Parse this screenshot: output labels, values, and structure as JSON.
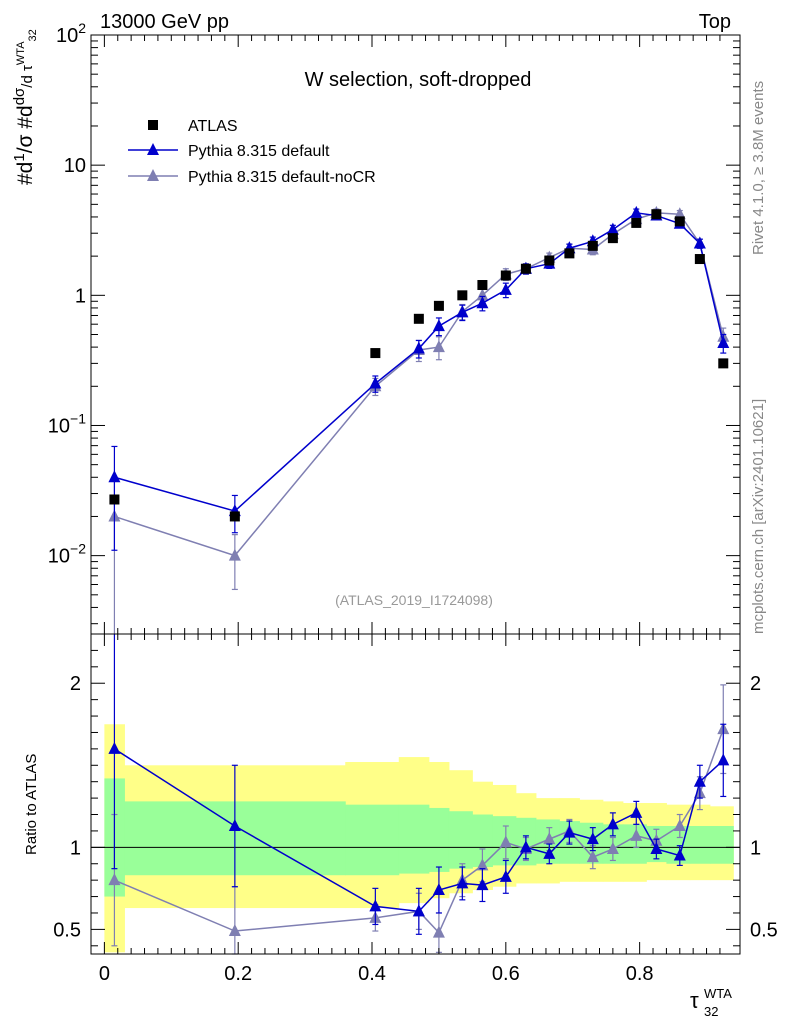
{
  "header": {
    "left": "13000 GeV pp",
    "right": "Top"
  },
  "side": {
    "rivet": "Rivet 4.1.0, ≥ 3.8M events",
    "mcplots": "mcplots.cern.ch [arXiv:2401.10621]"
  },
  "analysis_tag": "(ATLAS_2019_I1724098)",
  "colors": {
    "data": "#000000",
    "default": "#0000cc",
    "nocr": "#7f7fb2",
    "band_outer": "#ffff88",
    "band_inner": "#99ff99"
  },
  "chart_data": [
    {
      "type": "scatter",
      "title": "W selection, soft-dropped",
      "ylabel": "#d1/σ #dd σ/d τ32WTA",
      "yscale": "log",
      "ylim": [
        0.0025,
        100
      ],
      "xlim": [
        -0.02,
        0.95
      ],
      "yticks": [
        {
          "value": 0.01,
          "base": "10",
          "exp": "−2"
        },
        {
          "value": 0.1,
          "base": "10",
          "exp": "−1"
        },
        {
          "value": 1,
          "base": "1",
          "exp": ""
        },
        {
          "value": 10,
          "base": "10",
          "exp": ""
        },
        {
          "value": 100,
          "base": "10",
          "exp": "2"
        }
      ],
      "legend": {
        "position": "top-left",
        "entries": [
          "ATLAS",
          "Pythia 8.315 default",
          "Pythia 8.315 default-noCR"
        ]
      },
      "series": [
        {
          "name": "ATLAS",
          "marker": "square",
          "x": [
            0.015,
            0.195,
            0.405,
            0.47,
            0.5,
            0.535,
            0.565,
            0.6,
            0.63,
            0.665,
            0.695,
            0.73,
            0.76,
            0.795,
            0.825,
            0.86,
            0.89,
            0.925
          ],
          "y": [
            0.027,
            0.02,
            0.36,
            0.66,
            0.83,
            1.0,
            1.2,
            1.42,
            1.6,
            1.85,
            2.1,
            2.4,
            2.75,
            3.6,
            4.2,
            3.7,
            1.9,
            0.3
          ]
        },
        {
          "name": "Pythia 8.315 default",
          "marker": "triangle",
          "x": [
            0.015,
            0.195,
            0.405,
            0.47,
            0.5,
            0.535,
            0.565,
            0.6,
            0.63,
            0.665,
            0.695,
            0.73,
            0.76,
            0.795,
            0.825,
            0.86,
            0.89,
            0.925
          ],
          "y": [
            0.04,
            0.022,
            0.21,
            0.39,
            0.58,
            0.74,
            0.87,
            1.1,
            1.6,
            1.75,
            2.3,
            2.6,
            3.2,
            4.3,
            4.1,
            3.55,
            2.5,
            0.43
          ],
          "err": [
            0.029,
            0.007,
            0.03,
            0.06,
            0.09,
            0.1,
            0.11,
            0.14,
            0.14,
            0.14,
            0.17,
            0.2,
            0.25,
            0.3,
            0.28,
            0.25,
            0.2,
            0.07
          ]
        },
        {
          "name": "Pythia 8.315 default-noCR",
          "marker": "triangle",
          "x": [
            0.015,
            0.195,
            0.405,
            0.47,
            0.5,
            0.535,
            0.565,
            0.6,
            0.63,
            0.665,
            0.695,
            0.73,
            0.76,
            0.795,
            0.825,
            0.86,
            0.89,
            0.925
          ],
          "y": [
            0.02,
            0.01,
            0.2,
            0.38,
            0.4,
            0.75,
            1.0,
            1.45,
            1.6,
            1.95,
            2.3,
            2.25,
            2.95,
            3.85,
            4.3,
            4.2,
            2.5,
            0.48
          ],
          "err": [
            0.0175,
            0.0045,
            0.03,
            0.07,
            0.08,
            0.1,
            0.12,
            0.15,
            0.15,
            0.16,
            0.18,
            0.2,
            0.25,
            0.3,
            0.3,
            0.28,
            0.2,
            0.08
          ]
        }
      ]
    },
    {
      "type": "line",
      "ylabel": "Ratio to ATLAS",
      "xlabel": "τ32WTA",
      "xlabel_main": "τ",
      "xlabel_sup": "WTA",
      "xlabel_sub": "32",
      "ylim": [
        0.35,
        2.3
      ],
      "xlim": [
        -0.02,
        0.95
      ],
      "yticks": [
        0.5,
        1,
        2
      ],
      "xticks": [
        0,
        0.2,
        0.4,
        0.6,
        0.8
      ],
      "reference_line": 1,
      "bands": {
        "edges": [
          0.0,
          0.03,
          0.36,
          0.44,
          0.485,
          0.515,
          0.55,
          0.58,
          0.615,
          0.645,
          0.68,
          0.71,
          0.745,
          0.775,
          0.81,
          0.84,
          0.875,
          0.905,
          0.94
        ],
        "inner_low": [
          0.7,
          0.83,
          0.83,
          0.84,
          0.85,
          0.87,
          0.88,
          0.89,
          0.89,
          0.9,
          0.9,
          0.9,
          0.9,
          0.9,
          0.91,
          0.9,
          0.9,
          0.9
        ],
        "inner_high": [
          1.42,
          1.28,
          1.26,
          1.26,
          1.24,
          1.22,
          1.2,
          1.19,
          1.18,
          1.17,
          1.16,
          1.15,
          1.14,
          1.14,
          1.13,
          1.13,
          1.13,
          1.13
        ],
        "outer_low": [
          0.36,
          0.63,
          0.63,
          0.66,
          0.69,
          0.72,
          0.74,
          0.76,
          0.78,
          0.78,
          0.79,
          0.79,
          0.79,
          0.79,
          0.8,
          0.8,
          0.8,
          0.8
        ],
        "outer_high": [
          1.75,
          1.5,
          1.52,
          1.55,
          1.52,
          1.47,
          1.4,
          1.38,
          1.33,
          1.3,
          1.3,
          1.29,
          1.28,
          1.27,
          1.27,
          1.26,
          1.26,
          1.25
        ]
      },
      "series": [
        {
          "name": "Pythia 8.315 default",
          "x": [
            0.015,
            0.195,
            0.405,
            0.47,
            0.5,
            0.535,
            0.565,
            0.6,
            0.63,
            0.665,
            0.695,
            0.73,
            0.76,
            0.795,
            0.825,
            0.86,
            0.89,
            0.925
          ],
          "y": [
            1.6,
            1.13,
            0.64,
            0.61,
            0.74,
            0.78,
            0.77,
            0.82,
            1.0,
            0.96,
            1.09,
            1.05,
            1.14,
            1.21,
            0.99,
            0.95,
            1.4,
            1.53
          ],
          "err": [
            0.73,
            0.37,
            0.11,
            0.14,
            0.14,
            0.1,
            0.1,
            0.1,
            0.07,
            0.06,
            0.07,
            0.07,
            0.07,
            0.07,
            0.06,
            0.06,
            0.1,
            0.22
          ]
        },
        {
          "name": "Pythia 8.315 default-noCR",
          "x": [
            0.015,
            0.195,
            0.405,
            0.47,
            0.5,
            0.535,
            0.565,
            0.6,
            0.63,
            0.665,
            0.695,
            0.73,
            0.76,
            0.795,
            0.825,
            0.86,
            0.89,
            0.925
          ],
          "y": [
            0.8,
            0.49,
            0.57,
            0.61,
            0.48,
            0.8,
            0.89,
            1.03,
            0.99,
            1.05,
            1.1,
            0.94,
            0.99,
            1.07,
            1.04,
            1.13,
            1.33,
            1.72
          ],
          "err": [
            0.4,
            0.27,
            0.08,
            0.11,
            0.12,
            0.1,
            0.1,
            0.1,
            0.07,
            0.07,
            0.07,
            0.07,
            0.07,
            0.07,
            0.07,
            0.07,
            0.1,
            0.27
          ]
        }
      ]
    }
  ]
}
